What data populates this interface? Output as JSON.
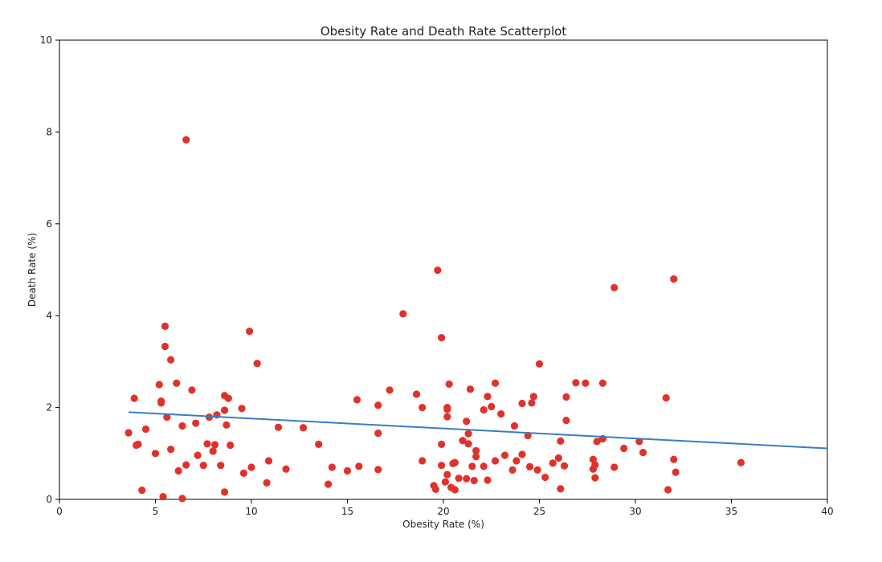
{
  "chart_data": {
    "type": "scatter",
    "title": "Obesity Rate and Death Rate Scatterplot",
    "xlabel": "Obesity Rate (%)",
    "ylabel": "Death Rate (%)",
    "xlim": [
      0,
      40
    ],
    "ylim": [
      0,
      10
    ],
    "xticks": [
      0,
      5,
      10,
      15,
      20,
      25,
      30,
      35,
      40
    ],
    "yticks": [
      0,
      2,
      4,
      6,
      8,
      10
    ],
    "grid": false,
    "point_color": "#e0322b",
    "line_color": "#3a7dc0",
    "series": [
      {
        "points": [
          [
            3.6,
            1.45
          ],
          [
            3.9,
            2.2
          ],
          [
            4.0,
            1.18
          ],
          [
            4.1,
            1.2
          ],
          [
            4.3,
            0.2
          ],
          [
            4.5,
            1.53
          ],
          [
            5.0,
            1.0
          ],
          [
            5.2,
            2.5
          ],
          [
            5.3,
            2.1
          ],
          [
            5.3,
            2.14
          ],
          [
            5.4,
            0.06
          ],
          [
            5.5,
            3.77
          ],
          [
            5.5,
            3.33
          ],
          [
            5.6,
            1.79
          ],
          [
            5.8,
            3.04
          ],
          [
            5.8,
            1.09
          ],
          [
            6.1,
            2.53
          ],
          [
            6.2,
            0.62
          ],
          [
            6.4,
            0.02
          ],
          [
            6.4,
            1.6
          ],
          [
            6.6,
            7.83
          ],
          [
            6.6,
            0.75
          ],
          [
            6.9,
            2.38
          ],
          [
            7.1,
            1.66
          ],
          [
            7.2,
            0.96
          ],
          [
            7.5,
            0.74
          ],
          [
            7.7,
            1.21
          ],
          [
            7.8,
            1.79
          ],
          [
            8.0,
            1.05
          ],
          [
            8.1,
            1.19
          ],
          [
            8.2,
            1.84
          ],
          [
            8.4,
            0.74
          ],
          [
            8.6,
            1.94
          ],
          [
            8.6,
            0.16
          ],
          [
            8.6,
            2.26
          ],
          [
            8.7,
            1.62
          ],
          [
            8.8,
            2.2
          ],
          [
            8.9,
            1.18
          ],
          [
            9.5,
            1.98
          ],
          [
            9.6,
            0.57
          ],
          [
            9.9,
            3.66
          ],
          [
            10.0,
            0.7
          ],
          [
            10.3,
            2.96
          ],
          [
            10.8,
            0.36
          ],
          [
            10.9,
            0.84
          ],
          [
            11.4,
            1.57
          ],
          [
            11.8,
            0.66
          ],
          [
            12.7,
            1.56
          ],
          [
            13.5,
            1.2
          ],
          [
            14.0,
            0.33
          ],
          [
            14.2,
            0.7
          ],
          [
            15.0,
            0.62
          ],
          [
            15.5,
            2.17
          ],
          [
            15.6,
            0.72
          ],
          [
            16.6,
            2.05
          ],
          [
            16.6,
            1.44
          ],
          [
            16.6,
            0.65
          ],
          [
            17.2,
            2.38
          ],
          [
            17.9,
            4.04
          ],
          [
            18.6,
            2.29
          ],
          [
            18.9,
            2.0
          ],
          [
            18.9,
            0.84
          ],
          [
            19.5,
            0.3
          ],
          [
            19.6,
            0.22
          ],
          [
            19.7,
            4.99
          ],
          [
            19.9,
            3.52
          ],
          [
            19.9,
            1.2
          ],
          [
            19.9,
            0.74
          ],
          [
            20.1,
            0.38
          ],
          [
            20.2,
            1.8
          ],
          [
            20.2,
            1.96
          ],
          [
            20.2,
            2.0
          ],
          [
            20.2,
            0.54
          ],
          [
            20.3,
            2.51
          ],
          [
            20.4,
            0.26
          ],
          [
            20.5,
            0.78
          ],
          [
            20.6,
            0.8
          ],
          [
            20.6,
            0.21
          ],
          [
            20.8,
            0.46
          ],
          [
            21.0,
            1.28
          ],
          [
            21.2,
            1.7
          ],
          [
            21.2,
            0.45
          ],
          [
            21.3,
            1.43
          ],
          [
            21.3,
            1.21
          ],
          [
            21.4,
            2.4
          ],
          [
            21.5,
            0.72
          ],
          [
            21.6,
            0.41
          ],
          [
            21.7,
            0.93
          ],
          [
            21.7,
            1.06
          ],
          [
            22.1,
            1.95
          ],
          [
            22.1,
            0.72
          ],
          [
            22.3,
            0.42
          ],
          [
            22.3,
            2.24
          ],
          [
            22.5,
            2.02
          ],
          [
            22.7,
            0.84
          ],
          [
            22.7,
            2.53
          ],
          [
            23.0,
            1.86
          ],
          [
            23.2,
            0.96
          ],
          [
            23.6,
            0.64
          ],
          [
            23.7,
            1.6
          ],
          [
            23.8,
            0.84
          ],
          [
            24.1,
            0.98
          ],
          [
            24.1,
            2.09
          ],
          [
            24.4,
            1.39
          ],
          [
            24.5,
            0.71
          ],
          [
            24.6,
            2.1
          ],
          [
            24.7,
            2.24
          ],
          [
            24.9,
            0.64
          ],
          [
            25.0,
            2.95
          ],
          [
            25.3,
            0.48
          ],
          [
            25.7,
            0.79
          ],
          [
            26.0,
            0.9
          ],
          [
            26.1,
            1.27
          ],
          [
            26.1,
            0.23
          ],
          [
            26.3,
            0.73
          ],
          [
            26.4,
            2.23
          ],
          [
            26.4,
            1.72
          ],
          [
            26.9,
            2.54
          ],
          [
            27.4,
            2.53
          ],
          [
            27.8,
            0.87
          ],
          [
            27.8,
            0.66
          ],
          [
            27.9,
            0.75
          ],
          [
            27.9,
            0.47
          ],
          [
            28.0,
            1.26
          ],
          [
            28.3,
            1.32
          ],
          [
            28.3,
            2.53
          ],
          [
            28.9,
            4.61
          ],
          [
            28.9,
            0.7
          ],
          [
            29.4,
            1.11
          ],
          [
            30.2,
            1.26
          ],
          [
            30.4,
            1.02
          ],
          [
            31.6,
            2.21
          ],
          [
            31.7,
            0.21
          ],
          [
            32.0,
            4.8
          ],
          [
            32.0,
            0.87
          ],
          [
            32.1,
            0.59
          ],
          [
            35.5,
            0.8
          ]
        ]
      }
    ],
    "trendline": {
      "x": [
        3.6,
        40
      ],
      "y": [
        1.9,
        1.11
      ]
    }
  }
}
